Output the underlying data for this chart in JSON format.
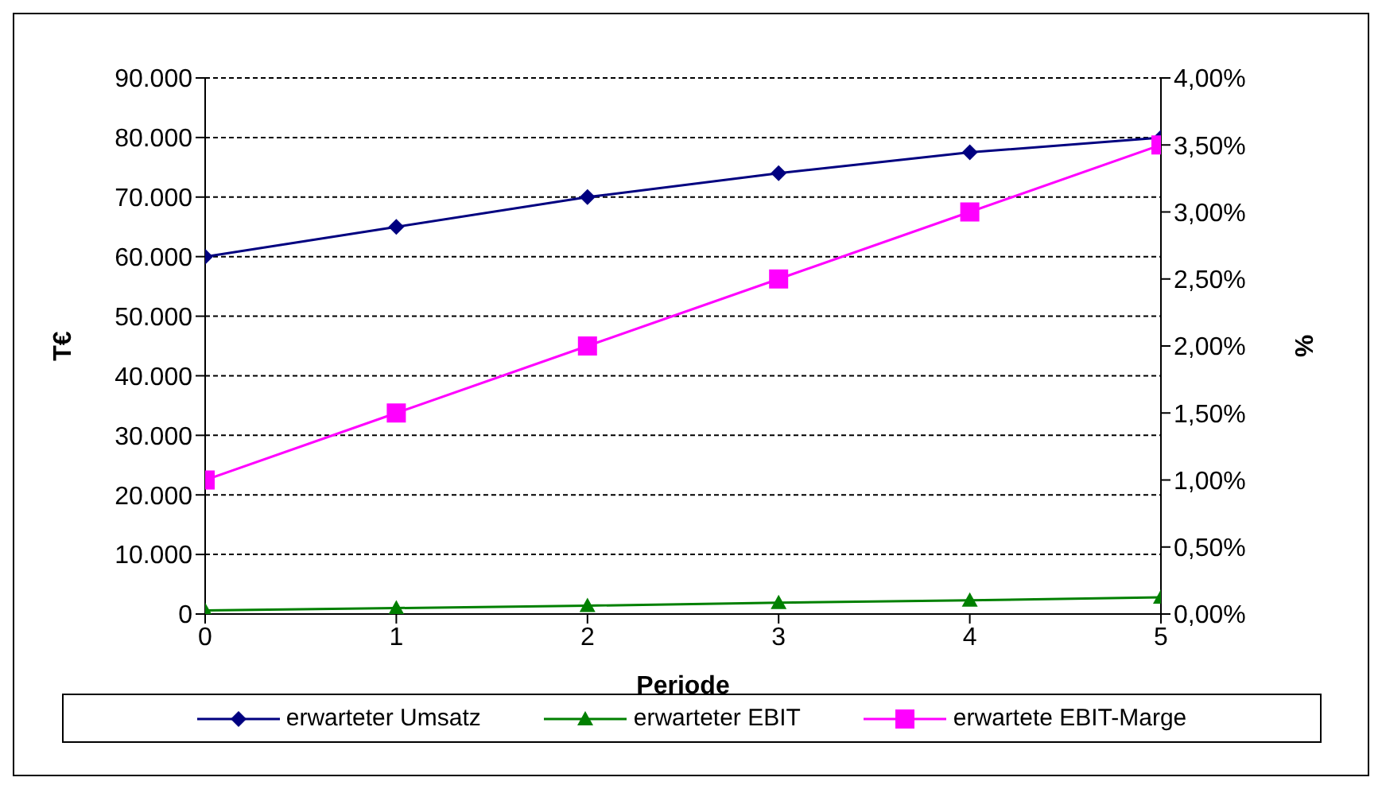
{
  "chart_data": {
    "type": "line",
    "xlabel": "Periode",
    "ylabel": "T€",
    "y2label": "%",
    "x": [
      0,
      1,
      2,
      3,
      4,
      5
    ],
    "xlim": [
      0,
      5
    ],
    "xticks": [
      0,
      1,
      2,
      3,
      4,
      5
    ],
    "ylim": [
      0,
      90000
    ],
    "yticks": [
      {
        "value": 0,
        "label": "0"
      },
      {
        "value": 10000,
        "label": "10.000"
      },
      {
        "value": 20000,
        "label": "20.000"
      },
      {
        "value": 30000,
        "label": "30.000"
      },
      {
        "value": 40000,
        "label": "40.000"
      },
      {
        "value": 50000,
        "label": "50.000"
      },
      {
        "value": 60000,
        "label": "60.000"
      },
      {
        "value": 70000,
        "label": "70.000"
      },
      {
        "value": 80000,
        "label": "80.000"
      },
      {
        "value": 90000,
        "label": "90.000"
      }
    ],
    "y2lim": [
      0,
      4
    ],
    "y2ticks": [
      {
        "value": 0,
        "label": "0,00%"
      },
      {
        "value": 0.5,
        "label": "0,50%"
      },
      {
        "value": 1,
        "label": "1,00%"
      },
      {
        "value": 1.5,
        "label": "1,50%"
      },
      {
        "value": 2,
        "label": "2,00%"
      },
      {
        "value": 2.5,
        "label": "2,50%"
      },
      {
        "value": 3,
        "label": "3,00%"
      },
      {
        "value": 3.5,
        "label": "3,50%"
      },
      {
        "value": 4,
        "label": "4,00%"
      }
    ],
    "grid": "y",
    "legend": "bottom",
    "line_style": "solid",
    "series": [
      {
        "name": "erwarteter Umsatz",
        "color": "#000080",
        "marker": "diamond",
        "values": [
          60000,
          65000,
          70000,
          74000,
          77500,
          80000
        ]
      },
      {
        "name": "erwarteter EBIT",
        "color": "#008000",
        "marker": "triangle",
        "values": [
          600,
          1000,
          1400,
          1900,
          2300,
          2800
        ]
      },
      {
        "name": "erwartete EBIT-Marge",
        "color": "#ff00ff",
        "marker": "square",
        "axis": "y2",
        "values": [
          1,
          1.5,
          2,
          2.5,
          3,
          3.5
        ]
      }
    ]
  }
}
